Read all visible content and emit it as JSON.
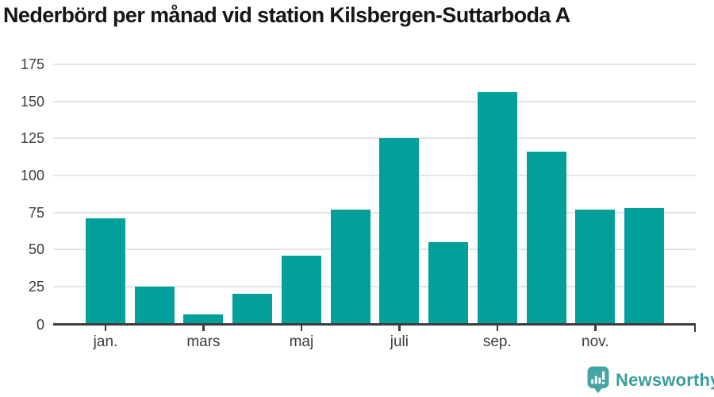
{
  "header": {
    "title": "Nederbörd per månad vid station Kilsbergen-Suttarboda A"
  },
  "chart_data": {
    "type": "bar",
    "title": "Nederbörd per månad vid station Kilsbergen-Suttarboda A",
    "values": [
      71,
      25,
      6,
      20,
      46,
      77,
      125,
      55,
      156,
      116,
      77,
      78
    ],
    "x_tick_labels": [
      "jan.",
      "mars",
      "maj",
      "juli",
      "sep.",
      "nov."
    ],
    "x_tick_indices": [
      0,
      2,
      4,
      6,
      8,
      10
    ],
    "y_ticks": [
      0,
      25,
      50,
      75,
      100,
      125,
      150,
      175
    ],
    "ylim": [
      0,
      175
    ],
    "grid": "horizontal",
    "legend": "none",
    "bar_color": "#01a09b",
    "gridline_color": "#e4e4e4",
    "axis_color": "#3c3c3c",
    "label_color": "#3d3d3d"
  },
  "footer": {
    "brand": "Newsworthy",
    "brand_color": "#3b9d9c",
    "logo_icon": "speech-bubble-bar-chart-icon"
  }
}
